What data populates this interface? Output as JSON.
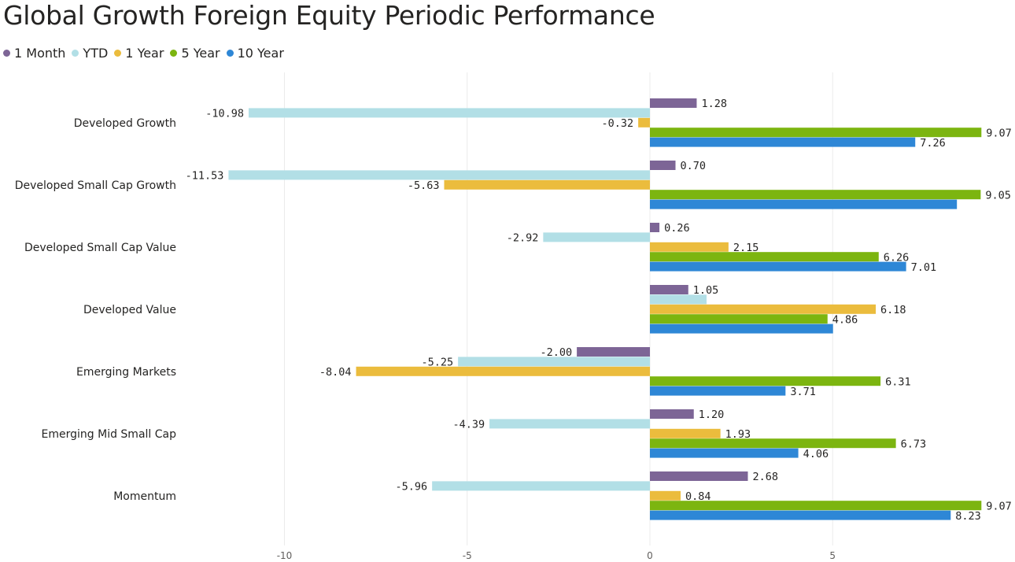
{
  "title": "Global Growth Foreign Equity Periodic Performance",
  "chart_data": {
    "type": "bar",
    "orientation": "horizontal",
    "title": "Global Growth Foreign Equity Periodic Performance",
    "categories": [
      "Developed Growth",
      "Developed Small Cap Growth",
      "Developed Small Cap Value",
      "Developed Value",
      "Emerging Markets",
      "Emerging Mid Small Cap",
      "Momentum"
    ],
    "series": [
      {
        "name": "1 Month",
        "color": "#7d6596",
        "values": [
          1.28,
          0.7,
          0.26,
          1.05,
          -2.0,
          1.2,
          2.68
        ],
        "labels": [
          "1.28",
          "0.70",
          "0.26",
          "1.05",
          "-2.00",
          "1.20",
          "2.68"
        ]
      },
      {
        "name": "YTD",
        "color": "#b2dfe6",
        "values": [
          -10.98,
          -11.53,
          -2.92,
          1.55,
          -5.25,
          -4.39,
          -5.96
        ],
        "labels": [
          "-10.98",
          "-11.53",
          "-2.92",
          "",
          "-5.25",
          "-4.39",
          "-5.96"
        ]
      },
      {
        "name": "1 Year",
        "color": "#ebbc3d",
        "values": [
          -0.32,
          -5.63,
          2.15,
          6.18,
          -8.04,
          1.93,
          0.84
        ],
        "labels": [
          "-0.32",
          "-5.63",
          "2.15",
          "6.18",
          "-8.04",
          "1.93",
          "0.84"
        ]
      },
      {
        "name": "5 Year",
        "color": "#7cb510",
        "values": [
          9.07,
          9.05,
          6.26,
          4.86,
          6.31,
          6.73,
          9.07
        ],
        "labels": [
          "9.07",
          "9.05",
          "6.26",
          "4.86",
          "6.31",
          "6.73",
          "9.07"
        ]
      },
      {
        "name": "10 Year",
        "color": "#2e87d6",
        "values": [
          7.26,
          8.4,
          7.01,
          5.01,
          3.71,
          4.06,
          8.23
        ],
        "labels": [
          "7.26",
          "",
          "7.01",
          "",
          "3.71",
          "4.06",
          "8.23"
        ]
      }
    ],
    "xlim": [
      -12,
      9.3
    ],
    "x_ticks": [
      -10,
      -5,
      0,
      5
    ],
    "x_tick_labels": [
      "-10",
      "-5",
      "0",
      "5"
    ],
    "grid": true,
    "legend_position": "top-left"
  }
}
